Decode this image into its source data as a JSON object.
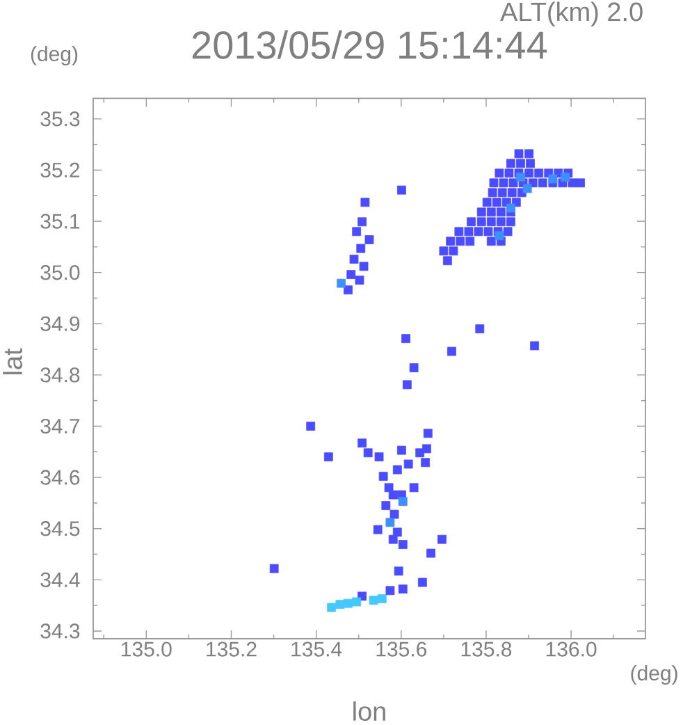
{
  "chart_data": {
    "type": "scatter",
    "title": "2013/05/29 15:14:44",
    "subtitle": "ALT(km) 2.0",
    "xlabel": "lon",
    "ylabel": "lat",
    "annotations": [
      "(deg)",
      "(deg)"
    ],
    "marker": "square",
    "xlim": [
      134.875,
      136.175
    ],
    "ylim": [
      34.285,
      35.34
    ],
    "xticks": [
      {
        "value": 134.9,
        "label": null
      },
      {
        "value": 135.0,
        "label": "135.0"
      },
      {
        "value": 135.1,
        "label": null
      },
      {
        "value": 135.2,
        "label": "135.2"
      },
      {
        "value": 135.3,
        "label": null
      },
      {
        "value": 135.4,
        "label": "135.4"
      },
      {
        "value": 135.5,
        "label": null
      },
      {
        "value": 135.6,
        "label": "135.6"
      },
      {
        "value": 135.7,
        "label": null
      },
      {
        "value": 135.8,
        "label": "135.8"
      },
      {
        "value": 135.9,
        "label": null
      },
      {
        "value": 136.0,
        "label": "136.0"
      },
      {
        "value": 136.1,
        "label": null
      }
    ],
    "yticks": [
      {
        "value": 34.3,
        "label": "34.3"
      },
      {
        "value": 34.35,
        "label": null
      },
      {
        "value": 34.4,
        "label": "34.4"
      },
      {
        "value": 34.45,
        "label": null
      },
      {
        "value": 34.5,
        "label": "34.5"
      },
      {
        "value": 34.55,
        "label": null
      },
      {
        "value": 34.6,
        "label": "34.6"
      },
      {
        "value": 34.65,
        "label": null
      },
      {
        "value": 34.7,
        "label": "34.7"
      },
      {
        "value": 34.75,
        "label": null
      },
      {
        "value": 34.8,
        "label": "34.8"
      },
      {
        "value": 34.85,
        "label": null
      },
      {
        "value": 34.9,
        "label": "34.9"
      },
      {
        "value": 34.95,
        "label": null
      },
      {
        "value": 35.0,
        "label": "35.0"
      },
      {
        "value": 35.05,
        "label": null
      },
      {
        "value": 35.1,
        "label": "35.1"
      },
      {
        "value": 35.15,
        "label": null
      },
      {
        "value": 35.2,
        "label": "35.2"
      },
      {
        "value": 35.25,
        "label": null
      },
      {
        "value": 35.3,
        "label": "35.3"
      }
    ],
    "series": [
      {
        "color": "#4c4cff",
        "x": [
          135.877,
          135.901,
          135.858,
          135.881,
          135.904,
          135.831,
          135.854,
          135.877,
          135.901,
          135.924,
          135.947,
          135.97,
          135.993,
          135.818,
          135.841,
          135.864,
          135.887,
          135.91,
          135.933,
          135.957,
          135.98,
          136.003,
          136.022,
          135.815,
          135.838,
          135.861,
          135.884,
          135.802,
          135.825,
          135.848,
          135.871,
          135.789,
          135.812,
          135.835,
          135.858,
          135.765,
          135.789,
          135.812,
          135.835,
          135.858,
          135.736,
          135.759,
          135.782,
          135.805,
          135.828,
          135.851,
          135.716,
          135.739,
          135.762,
          135.812,
          135.835,
          135.7,
          135.723,
          135.709,
          135.601,
          135.515,
          135.508,
          135.495,
          135.525,
          135.505,
          135.489,
          135.512,
          135.482,
          135.502,
          135.475,
          135.785,
          135.611,
          135.719,
          135.914,
          135.63,
          135.614,
          135.387,
          135.663,
          135.508,
          135.429,
          135.522,
          135.548,
          135.601,
          135.66,
          135.644,
          135.657,
          135.617,
          135.591,
          135.558,
          135.571,
          135.63,
          135.581,
          135.601,
          135.564,
          135.584,
          135.591,
          135.545,
          135.581,
          135.604,
          135.696,
          135.67,
          135.301,
          135.594,
          135.65,
          135.574,
          135.604,
          135.508
        ],
        "values": [
          35.232,
          35.232,
          35.213,
          35.213,
          35.213,
          35.194,
          35.194,
          35.194,
          35.194,
          35.194,
          35.194,
          35.194,
          35.194,
          35.175,
          35.175,
          35.175,
          35.175,
          35.175,
          35.175,
          35.175,
          35.175,
          35.175,
          35.175,
          35.156,
          35.156,
          35.156,
          35.156,
          35.137,
          35.137,
          35.137,
          35.137,
          35.118,
          35.118,
          35.118,
          35.118,
          35.099,
          35.099,
          35.099,
          35.099,
          35.099,
          35.08,
          35.08,
          35.08,
          35.08,
          35.08,
          35.08,
          35.061,
          35.061,
          35.061,
          35.061,
          35.061,
          35.042,
          35.042,
          35.023,
          35.161,
          35.137,
          35.099,
          35.08,
          35.064,
          35.047,
          35.026,
          35.012,
          34.996,
          34.985,
          34.966,
          34.89,
          34.871,
          34.846,
          34.857,
          34.814,
          34.781,
          34.7,
          34.686,
          34.667,
          34.64,
          34.648,
          34.64,
          34.653,
          34.656,
          34.648,
          34.629,
          34.626,
          34.615,
          34.602,
          34.58,
          34.58,
          34.566,
          34.566,
          34.545,
          34.528,
          34.493,
          34.498,
          34.479,
          34.469,
          34.479,
          34.452,
          34.422,
          34.417,
          34.395,
          34.379,
          34.382,
          34.368
        ]
      },
      {
        "color": "#3f8fff",
        "x": [
          135.881,
          135.897,
          135.957,
          135.986,
          135.858,
          135.831,
          135.459,
          135.604,
          135.574
        ],
        "values": [
          35.186,
          35.164,
          35.183,
          35.186,
          35.126,
          35.072,
          34.979,
          34.553,
          34.512
        ]
      },
      {
        "color": "#45c8ff",
        "x": [
          135.436,
          135.456,
          135.475,
          135.495,
          135.535,
          135.555
        ],
        "values": [
          34.346,
          34.352,
          34.354,
          34.357,
          34.36,
          34.363
        ]
      }
    ]
  }
}
